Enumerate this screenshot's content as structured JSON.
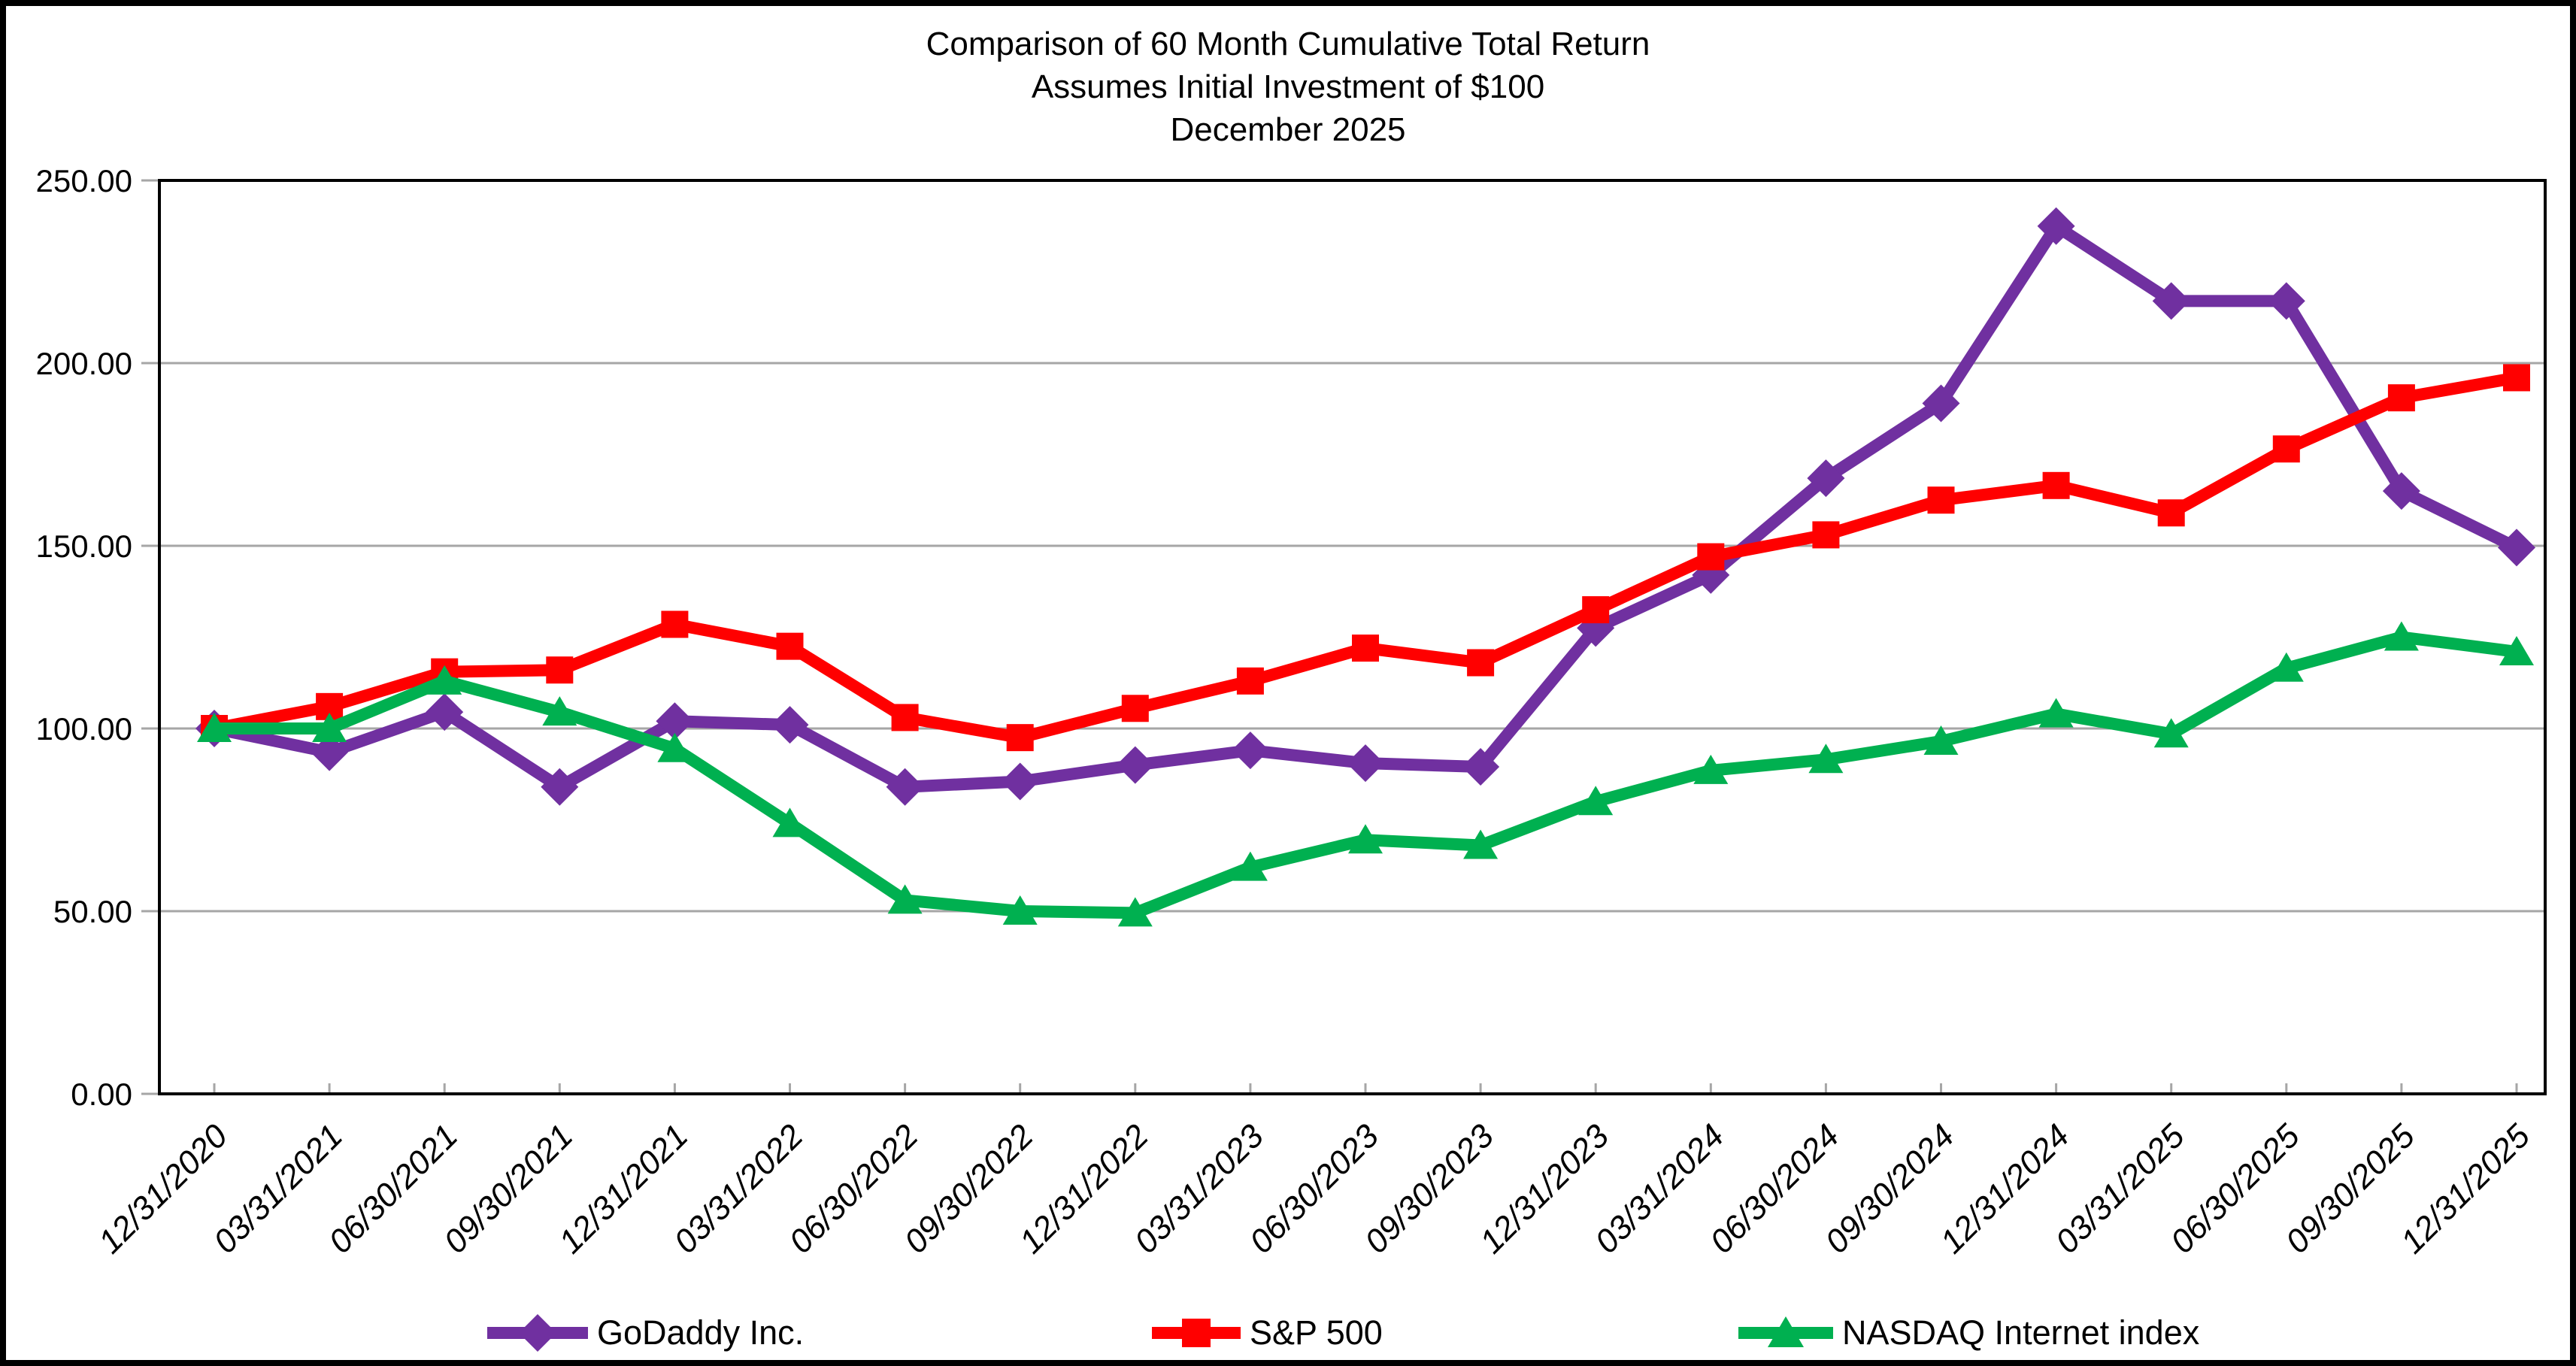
{
  "title": {
    "line1": "Comparison of 60 Month Cumulative Total Return",
    "line2": "Assumes Initial Investment of $100",
    "line3": "December 2025"
  },
  "y_axis": {
    "labels": [
      "0.00",
      "50.00",
      "100.00",
      "150.00",
      "200.00",
      "250.00"
    ],
    "min": 0,
    "max": 250,
    "step": 50
  },
  "chart_data": {
    "type": "line",
    "title": "Comparison of 60 Month Cumulative Total Return",
    "subtitle": "Assumes Initial Investment of $100",
    "period_label": "December 2025",
    "x": [
      "12/31/2020",
      "03/31/2021",
      "06/30/2021",
      "09/30/2021",
      "12/31/2021",
      "03/31/2022",
      "06/30/2022",
      "09/30/2022",
      "12/31/2022",
      "03/31/2023",
      "06/30/2023",
      "09/30/2023",
      "12/31/2023",
      "03/31/2024",
      "06/30/2024",
      "09/30/2024",
      "12/31/2024",
      "03/31/2025",
      "06/30/2025",
      "09/30/2025",
      "12/31/2025"
    ],
    "series": [
      {
        "name": "GoDaddy Inc.",
        "marker": "diamond",
        "color": "#7030A0",
        "values": [
          100,
          93.5,
          104.5,
          84,
          102,
          101,
          84,
          85.5,
          90,
          94,
          90.5,
          89.5,
          127.5,
          142,
          168.5,
          189,
          237.5,
          217,
          217,
          165,
          149.5
        ]
      },
      {
        "name": "S&P 500",
        "marker": "square",
        "color": "#FF0000",
        "values": [
          100,
          106,
          115.5,
          116,
          128.5,
          122.5,
          103,
          97.5,
          105.5,
          113,
          122,
          118,
          132.5,
          147,
          153,
          162.5,
          166.5,
          159,
          176.5,
          190.5,
          196
        ]
      },
      {
        "name": "NASDAQ Internet index",
        "marker": "triangle",
        "color": "#00B050",
        "values": [
          100,
          100,
          113,
          104.5,
          94.5,
          74,
          53,
          50,
          49.5,
          62,
          69.5,
          68,
          80,
          88.5,
          91.5,
          96.5,
          104,
          98.5,
          116.5,
          125,
          121
        ]
      }
    ],
    "ylim": [
      0,
      250
    ],
    "grid": true,
    "gridline_color": "#A6A6A6",
    "axis_color": "#000000",
    "legend_position": "bottom"
  }
}
